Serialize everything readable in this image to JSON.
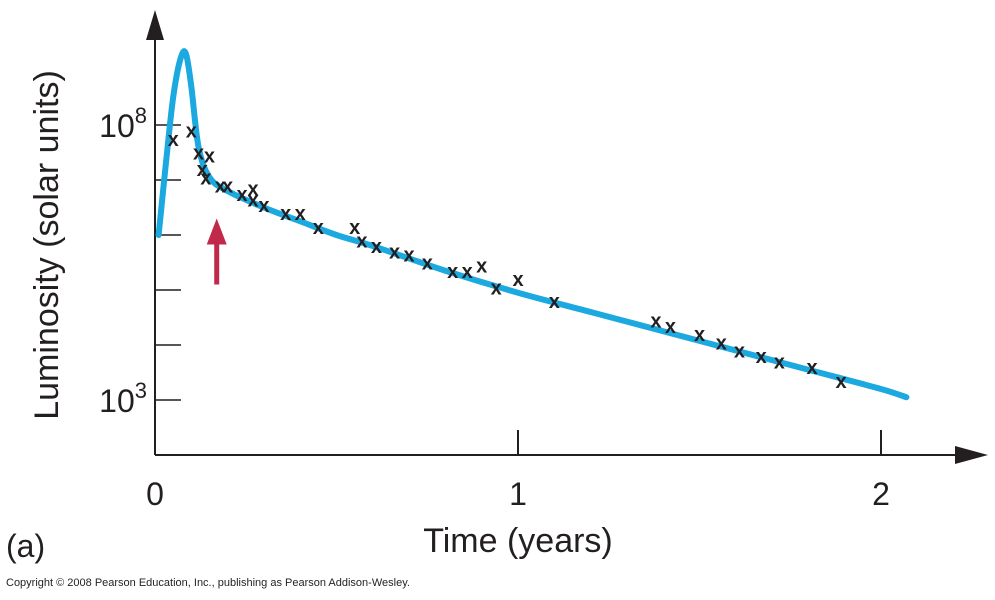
{
  "chart_data": {
    "type": "line",
    "yscale": "log",
    "xlabel": "Time (years)",
    "ylabel": "Luminosity (solar units)",
    "xlim": [
      0,
      2.2
    ],
    "ylim_log10": [
      2,
      9.5
    ],
    "x_ticks": [
      {
        "value": 0,
        "label": "0"
      },
      {
        "value": 1,
        "label": "1"
      },
      {
        "value": 2,
        "label": "2"
      }
    ],
    "y_ticks": [
      {
        "value": 100000000.0,
        "mantissa": "10",
        "exponent": "8"
      },
      {
        "value": 1000.0,
        "mantissa": "10",
        "exponent": "3"
      }
    ],
    "y_minor_log10": [
      3,
      4,
      5,
      6,
      7,
      8
    ],
    "curve": {
      "x": [
        0.01,
        0.03,
        0.05,
        0.07,
        0.085,
        0.1,
        0.12,
        0.15,
        0.2,
        0.3,
        0.4,
        0.5,
        0.6,
        0.8,
        1.0,
        1.2,
        1.4,
        1.6,
        1.8,
        2.0,
        2.07
      ],
      "log10_L": [
        6.0,
        7.3,
        8.5,
        9.2,
        9.3,
        8.7,
        7.6,
        7.05,
        6.8,
        6.5,
        6.25,
        6.0,
        5.8,
        5.35,
        4.95,
        4.6,
        4.25,
        3.9,
        3.55,
        3.2,
        3.05
      ],
      "color": "#1ba9df"
    },
    "observations": {
      "x": [
        0.05,
        0.1,
        0.12,
        0.15,
        0.13,
        0.14,
        0.18,
        0.2,
        0.24,
        0.27,
        0.27,
        0.3,
        0.36,
        0.4,
        0.45,
        0.55,
        0.57,
        0.61,
        0.66,
        0.7,
        0.75,
        0.82,
        0.86,
        0.9,
        0.94,
        1.0,
        1.1,
        1.38,
        1.42,
        1.5,
        1.56,
        1.61,
        1.67,
        1.72,
        1.81,
        1.89
      ],
      "log10_L": [
        7.75,
        7.9,
        7.5,
        7.45,
        7.2,
        7.05,
        6.9,
        6.9,
        6.75,
        6.85,
        6.65,
        6.55,
        6.4,
        6.4,
        6.15,
        6.15,
        5.9,
        5.8,
        5.7,
        5.65,
        5.5,
        5.35,
        5.35,
        5.45,
        5.05,
        5.2,
        4.8,
        4.45,
        4.35,
        4.2,
        4.05,
        3.9,
        3.8,
        3.7,
        3.6,
        3.35
      ],
      "marker": "x",
      "color": "#231f20"
    },
    "arrow": {
      "x": 0.17,
      "log10_L": [
        5.1,
        6.3
      ],
      "color": "#c0294a"
    },
    "grid": false
  },
  "panel_label": "(a)",
  "copyright": "Copyright © 2008 Pearson Education, Inc., publishing as Pearson Addison-Wesley."
}
